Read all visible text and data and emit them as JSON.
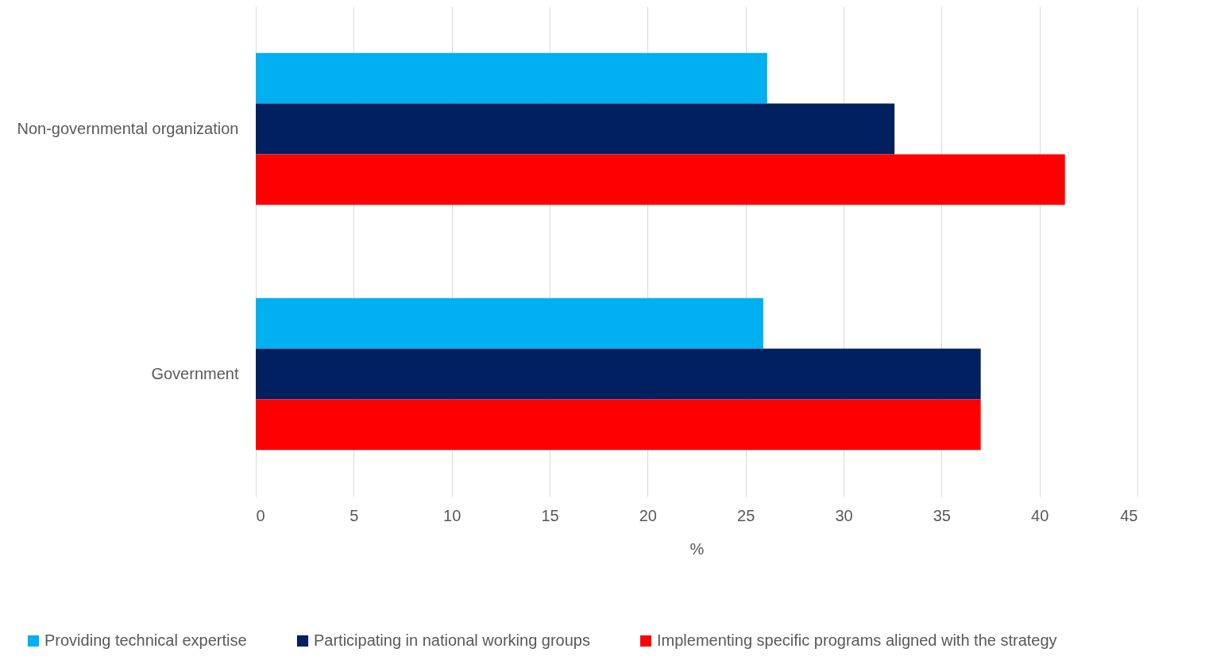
{
  "chart_data": {
    "type": "bar",
    "orientation": "horizontal",
    "categories": [
      "Non-governmental organization",
      "Government"
    ],
    "series": [
      {
        "name": "Providing technical expertise",
        "color": "#00b0f0",
        "values": [
          26.1,
          25.9
        ]
      },
      {
        "name": "Participating in national working groups",
        "color": "#002060",
        "values": [
          32.6,
          37.0
        ]
      },
      {
        "name": "Implementing specific programs aligned with the strategy",
        "color": "#ff0000",
        "values": [
          41.3,
          37.0
        ]
      }
    ],
    "xlabel": "%",
    "xlim": [
      0,
      45
    ],
    "xticks": [
      0,
      5,
      10,
      15,
      20,
      25,
      30,
      35,
      40,
      45
    ],
    "grid": "x",
    "legend": "bottom"
  }
}
